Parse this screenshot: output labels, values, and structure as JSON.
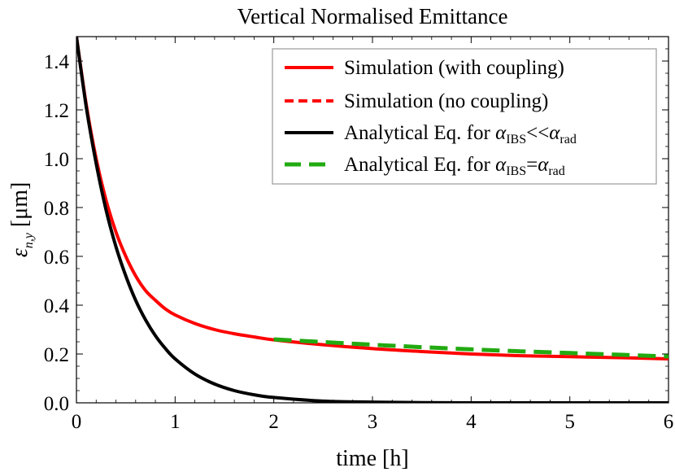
{
  "chart_data": {
    "type": "line",
    "title": "Vertical Normalised Emittance",
    "xlabel": "time [h]",
    "ylabel": "ε_{n,y} [μm]",
    "ylabel_parts": {
      "eps": "ε",
      "sub": "n,y",
      "rest": " [μm]"
    },
    "xlim": [
      0,
      6
    ],
    "ylim": [
      0,
      1.5
    ],
    "x_ticks": [
      0,
      1,
      2,
      3,
      4,
      5,
      6
    ],
    "x_tick_labels": [
      "0",
      "1",
      "2",
      "3",
      "4",
      "5",
      "6"
    ],
    "y_ticks": [
      0,
      0.2,
      0.4,
      0.6,
      0.8,
      1.0,
      1.2,
      1.4
    ],
    "y_tick_labels": [
      "0.0",
      "0.2",
      "0.4",
      "0.6",
      "0.8",
      "1.0",
      "1.2",
      "1.4"
    ],
    "grid": false,
    "legend_position": "top-right",
    "series": [
      {
        "name": "Simulation (with coupling)",
        "legend_parts": {
          "text": "Simulation (with coupling)"
        },
        "color": "#ff0000",
        "style": "solid",
        "x": [
          0,
          0.1,
          0.2,
          0.3,
          0.4,
          0.5,
          0.6,
          0.7,
          0.8,
          0.9,
          1.0,
          1.2,
          1.4,
          1.6,
          1.8,
          2.0,
          2.5,
          3.0,
          3.5,
          4.0,
          4.5,
          5.0,
          5.5,
          6.0
        ],
        "y": [
          1.5,
          1.22,
          1.0,
          0.83,
          0.7,
          0.6,
          0.52,
          0.46,
          0.42,
          0.385,
          0.36,
          0.325,
          0.3,
          0.283,
          0.27,
          0.258,
          0.238,
          0.222,
          0.21,
          0.2,
          0.193,
          0.189,
          0.185,
          0.18
        ]
      },
      {
        "name": "Simulation (no coupling)",
        "legend_parts": {
          "text": "Simulation (no coupling)"
        },
        "color": "#ff0000",
        "style": "dashed",
        "x": [
          0,
          0.1,
          0.2,
          0.3,
          0.4,
          0.5,
          0.6,
          0.7,
          0.8,
          0.9,
          1.0,
          1.2,
          1.4,
          1.6,
          1.8,
          2.0,
          2.5,
          3.0,
          3.5,
          4.0,
          4.5,
          5.0,
          5.5,
          6.0
        ],
        "y": [
          1.5,
          1.21,
          0.98,
          0.79,
          0.64,
          0.52,
          0.42,
          0.34,
          0.275,
          0.223,
          0.18,
          0.118,
          0.077,
          0.05,
          0.033,
          0.022,
          0.007,
          0.003,
          0.001,
          0.0,
          0.0,
          0.0,
          0.0,
          0.0
        ]
      },
      {
        "name": "Analytical Eq. for α_IBS<<α_rad",
        "legend_parts": {
          "pre": "Analytical Eq. for ",
          "a1": "α",
          "s1": "IBS",
          "mid": "<<",
          "a2": "α",
          "s2": "rad"
        },
        "color": "#000000",
        "style": "solid",
        "x": [
          0,
          0.1,
          0.2,
          0.3,
          0.4,
          0.5,
          0.6,
          0.7,
          0.8,
          0.9,
          1.0,
          1.2,
          1.4,
          1.6,
          1.8,
          2.0,
          2.5,
          3.0,
          3.5,
          4.0,
          4.5,
          5.0,
          5.5,
          6.0
        ],
        "y": [
          1.5,
          1.21,
          0.98,
          0.79,
          0.64,
          0.52,
          0.42,
          0.34,
          0.275,
          0.223,
          0.18,
          0.118,
          0.077,
          0.05,
          0.033,
          0.022,
          0.007,
          0.003,
          0.001,
          0.0,
          0.0,
          0.0,
          0.0,
          0.0
        ]
      },
      {
        "name": "Analytical Eq. for α_IBS=α_rad",
        "legend_parts": {
          "pre": "Analytical Eq. for ",
          "a1": "α",
          "s1": "IBS",
          "mid": "=",
          "a2": "α",
          "s2": "rad"
        },
        "color": "#22aa11",
        "style": "longdash",
        "x": [
          2.0,
          2.5,
          3.0,
          3.5,
          4.0,
          4.5,
          5.0,
          5.5,
          6.0
        ],
        "y": [
          0.26,
          0.249,
          0.238,
          0.228,
          0.219,
          0.211,
          0.204,
          0.197,
          0.19
        ]
      }
    ]
  }
}
